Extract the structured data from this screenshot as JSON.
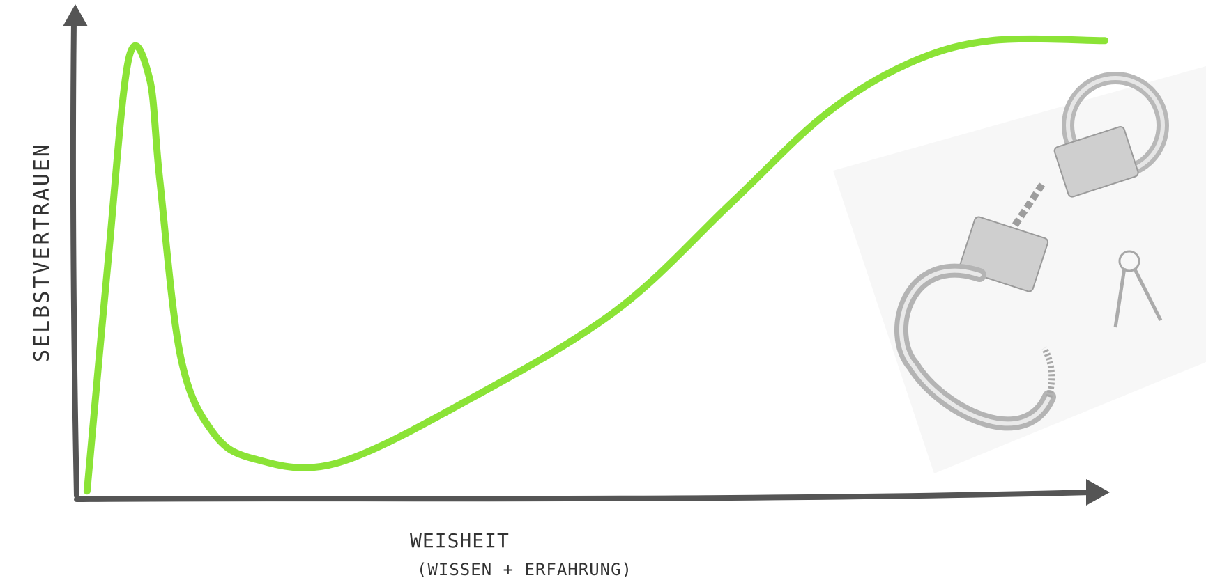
{
  "chart_data": {
    "type": "line",
    "title": "",
    "xlabel": "WEISHEIT",
    "xlabel_sub": "(WISSEN + ERFAHRUNG)",
    "ylabel": "SELBSTVERTRAUEN",
    "x_ticks": "none",
    "y_ticks": "none",
    "grid": false,
    "legend": "none",
    "xlim": [
      0,
      100
    ],
    "ylim": [
      0,
      100
    ],
    "series": [
      {
        "color": "#8be336",
        "points": [
          {
            "x": 1.0,
            "y": 1
          },
          {
            "x": 3.0,
            "y": 50
          },
          {
            "x": 5.0,
            "y": 94
          },
          {
            "x": 7.0,
            "y": 90
          },
          {
            "x": 8.0,
            "y": 68
          },
          {
            "x": 10.0,
            "y": 30
          },
          {
            "x": 13.0,
            "y": 14
          },
          {
            "x": 17.0,
            "y": 8
          },
          {
            "x": 25.0,
            "y": 7
          },
          {
            "x": 38.0,
            "y": 21
          },
          {
            "x": 52.0,
            "y": 40
          },
          {
            "x": 63.0,
            "y": 63
          },
          {
            "x": 72.0,
            "y": 82
          },
          {
            "x": 80.0,
            "y": 93
          },
          {
            "x": 88.0,
            "y": 98
          },
          {
            "x": 99.0,
            "y": 98
          }
        ]
      }
    ]
  },
  "image": {
    "subject": "handcuffs-with-keys"
  }
}
